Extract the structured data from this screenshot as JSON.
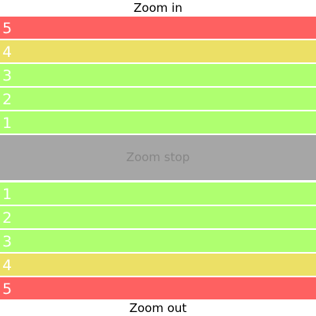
{
  "zoom_in_label": "Zoom in",
  "zoom_out_label": "Zoom out",
  "stop_label": "Zoom stop",
  "zoom_in_steps": [
    {
      "label": "5",
      "color": "#fe6161"
    },
    {
      "label": "4",
      "color": "#ece066"
    },
    {
      "label": "3",
      "color": "#afff70"
    },
    {
      "label": "2",
      "color": "#afff70"
    },
    {
      "label": "1",
      "color": "#afff70"
    }
  ],
  "zoom_out_steps": [
    {
      "label": "1",
      "color": "#afff70"
    },
    {
      "label": "2",
      "color": "#afff70"
    },
    {
      "label": "3",
      "color": "#afff70"
    },
    {
      "label": "4",
      "color": "#ece066"
    },
    {
      "label": "5",
      "color": "#fe6161"
    }
  ],
  "stop_color": "#a6a6a6"
}
